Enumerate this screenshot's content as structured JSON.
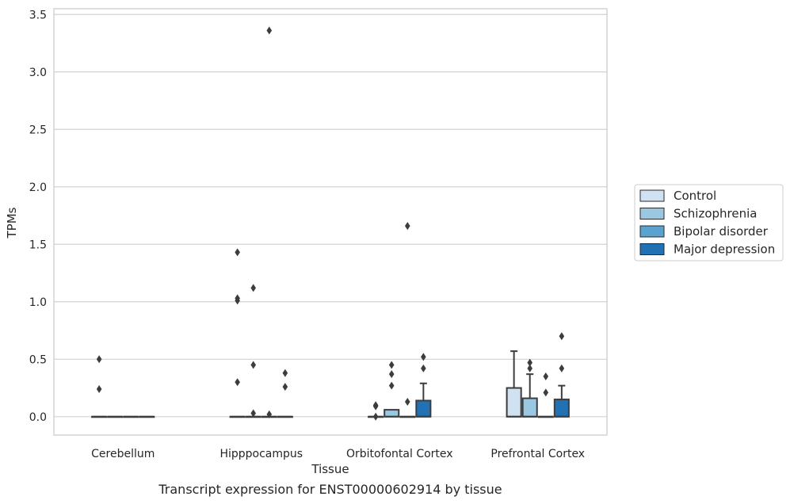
{
  "chart_data": {
    "type": "box",
    "caption": "Transcript expression for ENST00000602914 by tissue",
    "xlabel": "Tissue",
    "ylabel": "TPMs",
    "ylim": [
      -0.16,
      3.55
    ],
    "yticks": [
      0.0,
      0.5,
      1.0,
      1.5,
      2.0,
      2.5,
      3.0,
      3.5
    ],
    "ytick_labels": [
      "0.0",
      "0.5",
      "1.0",
      "1.5",
      "2.0",
      "2.5",
      "3.0",
      "3.5"
    ],
    "grid": "horizontal",
    "legend_placement": "right",
    "categories": [
      "Cerebellum",
      "Hipppocampus",
      "Orbitofontal Cortex",
      "Prefrontal Cortex"
    ],
    "series": [
      {
        "name": "Control",
        "color": "#d0e1f2",
        "boxes": [
          {
            "q1": 0,
            "median": 0,
            "q3": 0,
            "whisker_low": 0,
            "whisker_high": 0,
            "outliers": [
              0.5,
              0.24
            ]
          },
          {
            "q1": 0,
            "median": 0,
            "q3": 0,
            "whisker_low": 0,
            "whisker_high": 0,
            "outliers": [
              1.43,
              1.03,
              1.01,
              0.3
            ]
          },
          {
            "q1": 0,
            "median": 0,
            "q3": 0,
            "whisker_low": 0,
            "whisker_high": 0,
            "outliers": [
              0.1,
              0.09,
              0.0
            ]
          },
          {
            "q1": 0,
            "median": 0,
            "q3": 0.25,
            "whisker_low": 0,
            "whisker_high": 0.57,
            "outliers": []
          }
        ]
      },
      {
        "name": "Schizophrenia",
        "color": "#9ac8e0",
        "boxes": [
          {
            "q1": 0,
            "median": 0,
            "q3": 0,
            "whisker_low": 0,
            "whisker_high": 0,
            "outliers": []
          },
          {
            "q1": 0,
            "median": 0,
            "q3": 0,
            "whisker_low": 0,
            "whisker_high": 0,
            "outliers": [
              1.12,
              0.45,
              0.03
            ]
          },
          {
            "q1": 0,
            "median": 0,
            "q3": 0.06,
            "whisker_low": 0,
            "whisker_high": 0.06,
            "outliers": [
              0.45,
              0.37,
              0.27
            ]
          },
          {
            "q1": 0,
            "median": 0,
            "q3": 0.16,
            "whisker_low": 0,
            "whisker_high": 0.37,
            "outliers": [
              0.47,
              0.42
            ]
          }
        ]
      },
      {
        "name": "Bipolar disorder",
        "color": "#5ba3cf",
        "boxes": [
          {
            "q1": 0,
            "median": 0,
            "q3": 0,
            "whisker_low": 0,
            "whisker_high": 0,
            "outliers": []
          },
          {
            "q1": 0,
            "median": 0,
            "q3": 0,
            "whisker_low": 0,
            "whisker_high": 0,
            "outliers": [
              3.36,
              0.02
            ]
          },
          {
            "q1": 0,
            "median": 0,
            "q3": 0,
            "whisker_low": 0,
            "whisker_high": 0,
            "outliers": [
              1.66,
              0.13
            ]
          },
          {
            "q1": 0,
            "median": 0,
            "q3": 0,
            "whisker_low": 0,
            "whisker_high": 0,
            "outliers": [
              0.35,
              0.21
            ]
          }
        ]
      },
      {
        "name": "Major depression",
        "color": "#2171b5",
        "boxes": [
          {
            "q1": 0,
            "median": 0,
            "q3": 0,
            "whisker_low": 0,
            "whisker_high": 0,
            "outliers": []
          },
          {
            "q1": 0,
            "median": 0,
            "q3": 0,
            "whisker_low": 0,
            "whisker_high": 0,
            "outliers": [
              0.38,
              0.26
            ]
          },
          {
            "q1": 0,
            "median": 0,
            "q3": 0.14,
            "whisker_low": 0,
            "whisker_high": 0.29,
            "outliers": [
              0.52,
              0.42
            ]
          },
          {
            "q1": 0,
            "median": 0,
            "q3": 0.15,
            "whisker_low": 0,
            "whisker_high": 0.27,
            "outliers": [
              0.7,
              0.42
            ]
          }
        ]
      }
    ]
  }
}
